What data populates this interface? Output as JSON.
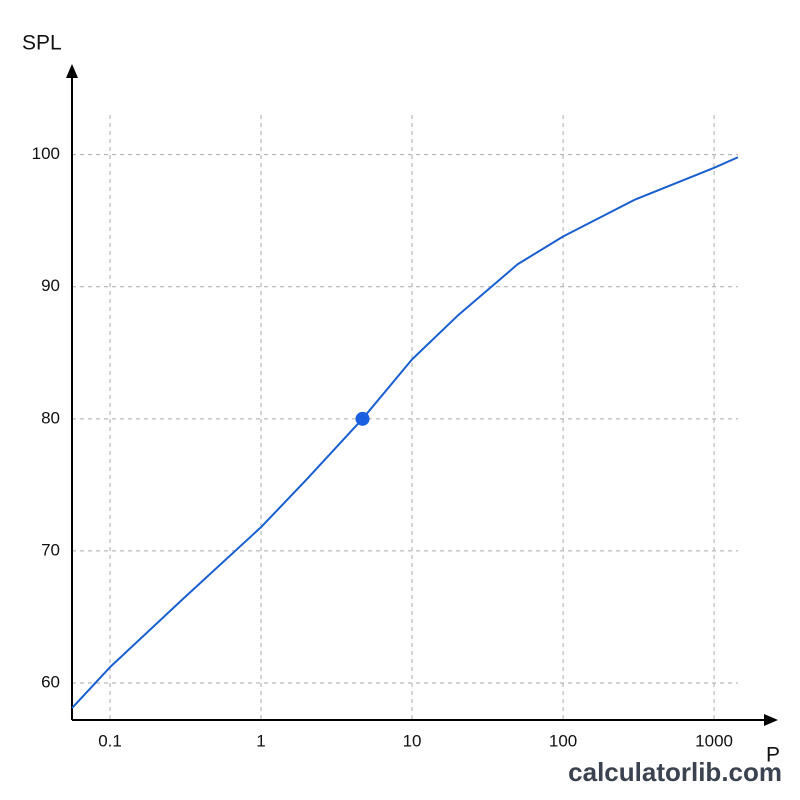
{
  "chart_data": {
    "type": "line",
    "x_label": "P",
    "y_label": "SPL",
    "watermark": "calculatorlib.com",
    "log_x": true,
    "grid": true,
    "x": [
      0.056,
      0.1,
      0.3,
      1,
      2,
      4.7,
      10,
      20,
      50,
      100,
      300,
      1000,
      1440
    ],
    "series": [
      {
        "color": "#1a5fcf",
        "values": [
          58.1,
          61.2,
          66.3,
          71.8,
          75.4,
          80,
          84.5,
          87.8,
          91.7,
          93.8,
          96.6,
          99,
          99.8
        ]
      }
    ],
    "highlight": {
      "x": 4.7,
      "y": 80,
      "color": "#1a5fdf"
    },
    "xlim": [
      0.056,
      1440
    ],
    "xticks": [
      0.1,
      1,
      10,
      100,
      1000
    ],
    "ylim": [
      57.2,
      103
    ],
    "yticks": [
      60,
      70,
      80,
      90,
      100
    ]
  }
}
